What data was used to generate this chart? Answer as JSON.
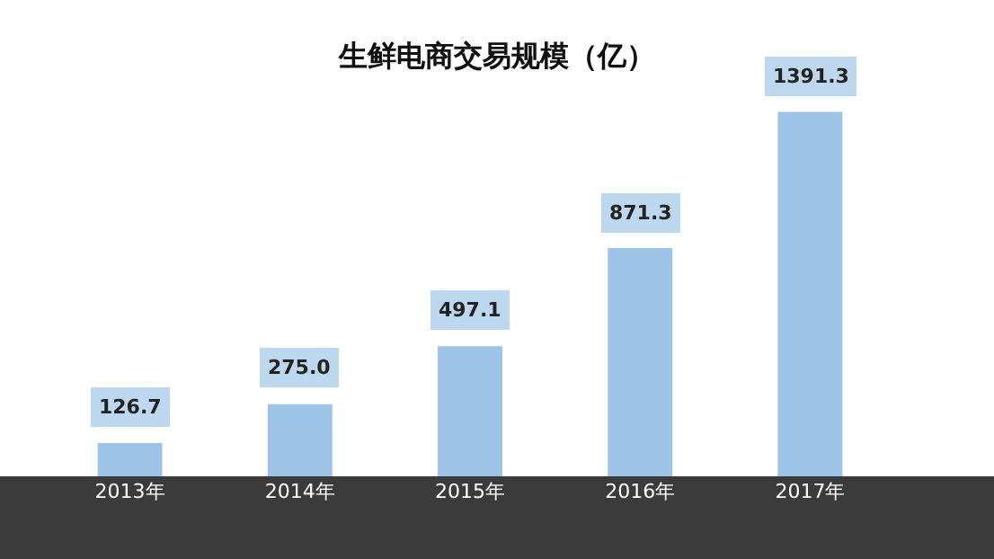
{
  "chart_data": {
    "type": "bar",
    "title": "生鲜电商交易规模（亿）",
    "categories": [
      "2013年",
      "2014年",
      "2015年",
      "2016年",
      "2017年"
    ],
    "values": [
      126.7,
      275.0,
      497.1,
      871.3,
      1391.3
    ],
    "value_labels": [
      "126.7",
      "275.0",
      "497.1",
      "871.3",
      "1391.3"
    ],
    "color": "#9dc3e6"
  }
}
